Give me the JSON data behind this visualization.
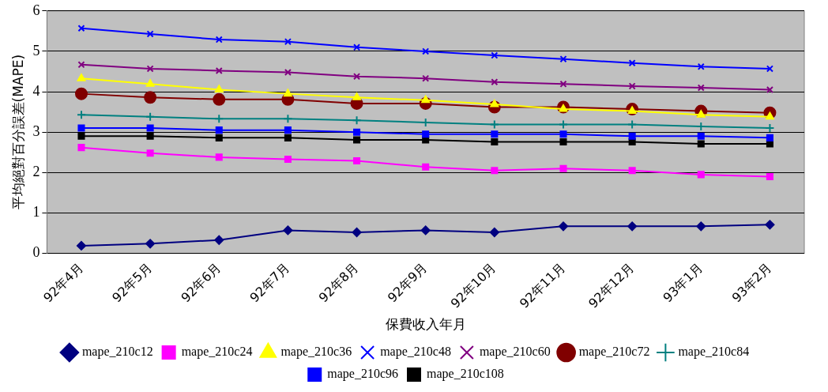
{
  "chart_data": {
    "type": "line",
    "xlabel": "保費收入年月",
    "ylabel": "平均絕對百分誤差(MAPE)",
    "categories": [
      "92年4月",
      "92年5月",
      "92年6月",
      "92年7月",
      "92年8月",
      "92年9月",
      "92年10月",
      "92年11月",
      "92年12月",
      "93年1月",
      "93年2月"
    ],
    "ylim": [
      0,
      6
    ],
    "yticks": [
      0,
      1,
      2,
      3,
      4,
      5,
      6
    ],
    "grid": "y",
    "legend": "bottom",
    "line_style": "solid",
    "series": [
      {
        "name": "mape_210c12",
        "color": "#000080",
        "marker": "diamond",
        "values": [
          0.19,
          0.24,
          0.33,
          0.57,
          0.52,
          0.57,
          0.52,
          0.67,
          0.67,
          0.67,
          0.71
        ]
      },
      {
        "name": "mape_210c24",
        "color": "#ff00ff",
        "marker": "square",
        "values": [
          2.62,
          2.48,
          2.38,
          2.33,
          2.29,
          2.14,
          2.05,
          2.1,
          2.05,
          1.95,
          1.9
        ]
      },
      {
        "name": "mape_210c36",
        "color": "#ffff00",
        "marker": "triangle",
        "values": [
          4.33,
          4.19,
          4.05,
          3.95,
          3.86,
          3.79,
          3.69,
          3.57,
          3.52,
          3.43,
          3.38
        ]
      },
      {
        "name": "mape_210c48",
        "color": "#0000ff",
        "marker": "cross",
        "values": [
          5.57,
          5.43,
          5.29,
          5.24,
          5.1,
          5.0,
          4.9,
          4.81,
          4.71,
          4.62,
          4.57
        ]
      },
      {
        "name": "mape_210c60",
        "color": "#800080",
        "marker": "cross",
        "values": [
          4.67,
          4.57,
          4.52,
          4.48,
          4.38,
          4.33,
          4.24,
          4.19,
          4.14,
          4.1,
          4.05
        ]
      },
      {
        "name": "mape_210c72",
        "color": "#800000",
        "marker": "circle",
        "values": [
          3.95,
          3.86,
          3.81,
          3.81,
          3.71,
          3.71,
          3.62,
          3.62,
          3.57,
          3.52,
          3.48
        ]
      },
      {
        "name": "mape_210c84",
        "color": "#008080",
        "marker": "plus",
        "values": [
          3.43,
          3.38,
          3.33,
          3.33,
          3.29,
          3.24,
          3.19,
          3.19,
          3.19,
          3.14,
          3.1
        ]
      },
      {
        "name": "mape_210c96",
        "color": "#0000ff",
        "marker": "square",
        "values": [
          3.1,
          3.1,
          3.05,
          3.05,
          3.0,
          2.95,
          2.95,
          2.95,
          2.9,
          2.9,
          2.86
        ]
      },
      {
        "name": "mape_210c108",
        "color": "#000000",
        "marker": "square",
        "values": [
          2.9,
          2.9,
          2.86,
          2.86,
          2.81,
          2.81,
          2.76,
          2.76,
          2.76,
          2.71,
          2.71
        ]
      }
    ]
  }
}
